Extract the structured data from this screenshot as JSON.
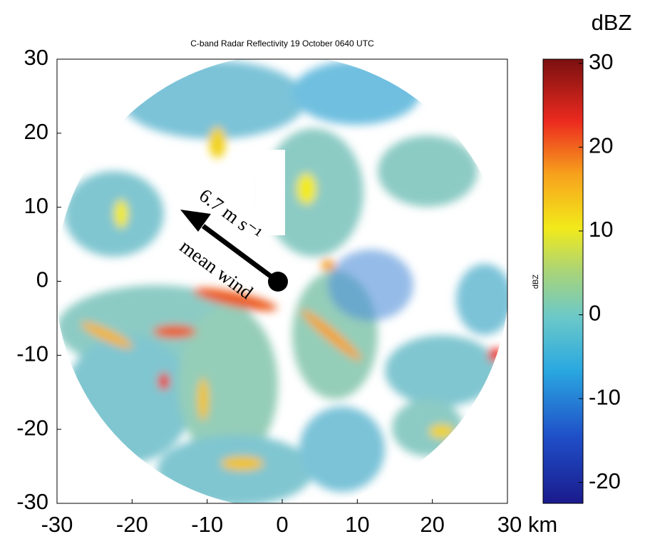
{
  "chart_data": {
    "type": "heatmap",
    "title": "C-band Radar Reflectivity 19 October 0640 UTC",
    "xlim": [
      -30,
      30
    ],
    "xticks": [
      -30,
      -20,
      -10,
      0,
      10,
      20,
      {
        "value": 30,
        "label": "30 km"
      }
    ],
    "ylim": [
      -30,
      30
    ],
    "yticks": [
      -30,
      -20,
      -10,
      0,
      10,
      20,
      30
    ],
    "colorbar": {
      "title": "dBZ",
      "label": "dBZ",
      "lim": [
        -22.5,
        30.5
      ],
      "ticks": [
        -20,
        -10,
        0,
        10,
        20,
        30
      ]
    },
    "annotations": [
      {
        "text": "6.7 m s⁻¹"
      },
      {
        "text": "mean wind"
      }
    ]
  }
}
